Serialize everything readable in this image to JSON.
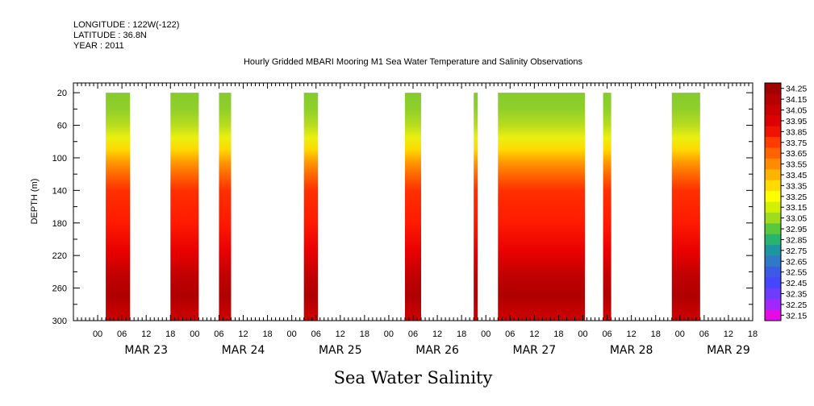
{
  "header": {
    "longitude": "LONGITUDE : 122W(-122)",
    "latitude": "LATITUDE : 36.8N",
    "year": "YEAR : 2011"
  },
  "chart_data": {
    "type": "heatmap",
    "title": "Hourly Gridded MBARI Mooring M1 Sea Water Temperature and Salinity Observations",
    "variable_label": "Sea Water Salinity",
    "ylabel": "DEPTH (m)",
    "xlabel": "",
    "ylim": [
      300,
      8
    ],
    "y_reversed": true,
    "y_ticks": [
      20,
      60,
      100,
      140,
      180,
      220,
      260,
      300
    ],
    "x_unit": "hours since MAR 22 18:00",
    "xlim": [
      0,
      168
    ],
    "x_tick_labels": [
      "00",
      "06",
      "12",
      "18",
      "00",
      "06",
      "12",
      "18",
      "00",
      "06",
      "12",
      "18",
      "00",
      "06",
      "12",
      "18",
      "00",
      "06",
      "12",
      "18",
      "00",
      "06",
      "12",
      "18",
      "00",
      "06",
      "12",
      "18"
    ],
    "day_labels": [
      "MAR 23",
      "MAR 24",
      "MAR 25",
      "MAR 26",
      "MAR 27",
      "MAR 28",
      "MAR 29"
    ],
    "data_segments": [
      {
        "start": 8,
        "end": 14
      },
      {
        "start": 24,
        "end": 31
      },
      {
        "start": 36,
        "end": 39
      },
      {
        "start": 57,
        "end": 60.5
      },
      {
        "start": 82,
        "end": 86
      },
      {
        "start": 99,
        "end": 100
      },
      {
        "start": 105,
        "end": 126.5
      },
      {
        "start": 131,
        "end": 133
      },
      {
        "start": 148,
        "end": 155
      }
    ],
    "colorbar": {
      "levels": [
        "34.25",
        "34.15",
        "34.05",
        "33.95",
        "33.85",
        "33.75",
        "33.65",
        "33.55",
        "33.45",
        "33.35",
        "33.25",
        "33.15",
        "33.05",
        "32.95",
        "32.85",
        "32.75",
        "32.65",
        "32.55",
        "32.45",
        "32.35",
        "32.25",
        "32.15"
      ],
      "colors": [
        "#a00000",
        "#b40000",
        "#c80000",
        "#dc0000",
        "#f01400",
        "#ff3c00",
        "#ff6400",
        "#ff8c00",
        "#ffb400",
        "#ffdc00",
        "#ffff00",
        "#d2f000",
        "#a0dc1e",
        "#5ac83c",
        "#28b46e",
        "#1e96a0",
        "#3278c8",
        "#3c5ae6",
        "#4646ff",
        "#6e3cff",
        "#a028ff",
        "#e60ae6"
      ]
    },
    "grid": false,
    "legend": "right"
  }
}
